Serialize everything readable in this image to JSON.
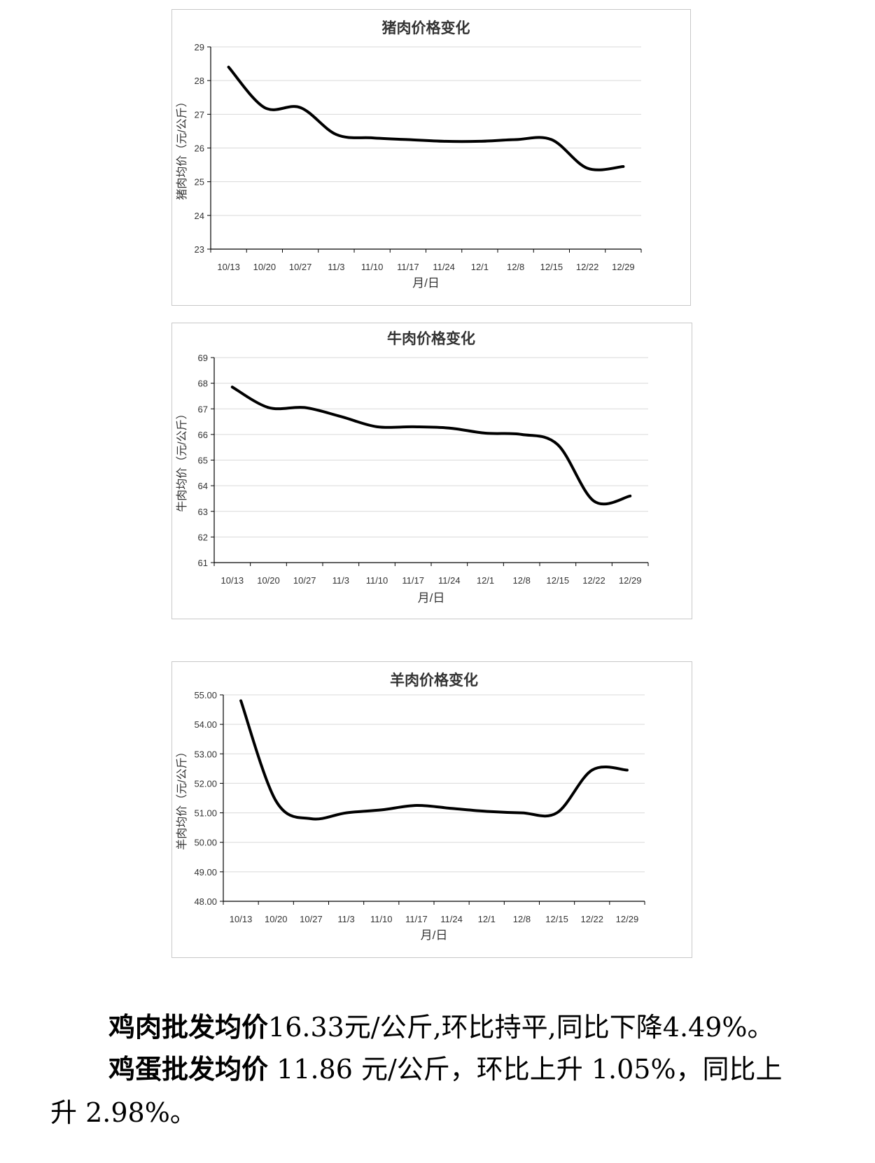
{
  "chart_data": [
    {
      "type": "line",
      "title": "猪肉价格变化",
      "xlabel": "月/日",
      "ylabel": "猪肉均价（元/公斤）",
      "categories": [
        "10/13",
        "10/20",
        "10/27",
        "11/3",
        "11/10",
        "11/17",
        "11/24",
        "12/1",
        "12/8",
        "12/15",
        "12/22",
        "12/29"
      ],
      "series": [
        {
          "values": [
            28.4,
            27.2,
            27.2,
            26.4,
            26.3,
            26.25,
            26.2,
            26.2,
            26.25,
            26.25,
            25.4,
            25.45
          ]
        }
      ],
      "ylim": [
        23,
        29
      ],
      "yticks": [
        "23",
        "24",
        "25",
        "26",
        "27",
        "28",
        "29"
      ],
      "grid": true
    },
    {
      "type": "line",
      "title": "牛肉价格变化",
      "xlabel": "月/日",
      "ylabel": "牛肉均价（元/公斤）",
      "categories": [
        "10/13",
        "10/20",
        "10/27",
        "11/3",
        "11/10",
        "11/17",
        "11/24",
        "12/1",
        "12/8",
        "12/15",
        "12/22",
        "12/29"
      ],
      "series": [
        {
          "values": [
            67.85,
            67.05,
            67.05,
            66.7,
            66.3,
            66.3,
            66.25,
            66.05,
            66.0,
            65.6,
            63.4,
            63.6
          ]
        }
      ],
      "ylim": [
        61,
        69
      ],
      "yticks": [
        "61",
        "62",
        "63",
        "64",
        "65",
        "66",
        "67",
        "68",
        "69"
      ],
      "grid": true
    },
    {
      "type": "line",
      "title": "羊肉价格变化",
      "xlabel": "月/日",
      "ylabel": "羊肉均价（元/公斤）",
      "categories": [
        "10/13",
        "10/20",
        "10/27",
        "11/3",
        "11/10",
        "11/17",
        "11/24",
        "12/1",
        "12/8",
        "12/15",
        "12/22",
        "12/29"
      ],
      "series": [
        {
          "values": [
            54.8,
            51.4,
            50.8,
            51.0,
            51.1,
            51.25,
            51.15,
            51.05,
            51.0,
            51.0,
            52.45,
            52.45
          ]
        }
      ],
      "ylim": [
        48,
        55
      ],
      "yticks": [
        "48.00",
        "49.00",
        "50.00",
        "51.00",
        "52.00",
        "53.00",
        "54.00",
        "55.00"
      ],
      "grid": true
    }
  ],
  "text": {
    "p1_lead": "鸡肉批发均价",
    "p1_rest": "16.33元/公斤,环比持平,同比下降4.49%。",
    "p2_lead": "鸡蛋批发均价",
    "p2_rest": " 11.86 元/公斤，环比上升 1.05%，同比上",
    "p3": "升 2.98%。"
  }
}
